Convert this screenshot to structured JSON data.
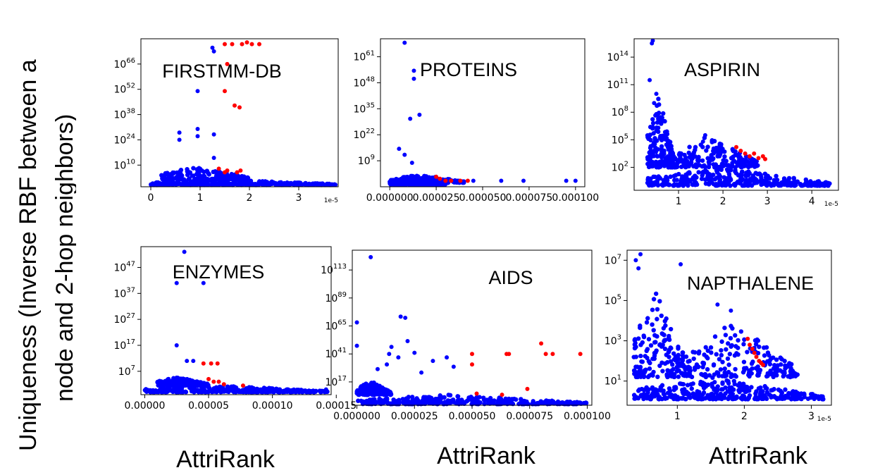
{
  "figure": {
    "ylabel_line1": "Uniqueness (Inverse RBF between a",
    "ylabel_line2": "node and 2-hop neighbors)",
    "xlabel": "AttriRank",
    "colors": {
      "normal": "#0000ff",
      "highlight": "#ff0000",
      "axis": "#000000"
    }
  },
  "chart_data": [
    {
      "type": "scatter",
      "title": "FIRSTMM-DB",
      "xlabel": "AttriRank",
      "ylabel": "Uniqueness",
      "yscale": "log",
      "xlim": [
        -0.2,
        3.8
      ],
      "ylim_log10": [
        -2,
        80
      ],
      "xticks": [
        0,
        1,
        2,
        3
      ],
      "xtick_labels": [
        "0",
        "1",
        "2",
        "3"
      ],
      "x_multiplier": "1e-5",
      "yticks_exp": [
        10,
        24,
        38,
        52,
        66
      ],
      "ytick_labels": [
        "10",
        "24",
        "38",
        "52",
        "66"
      ],
      "band": {
        "x0": 0.0,
        "x1": 3.75,
        "y0": -1,
        "y1": 2
      },
      "hump": {
        "x0": 0.2,
        "x1": 2.0,
        "y0": 2,
        "y1": 9
      },
      "blue_points": [
        [
          1.25,
          75
        ],
        [
          1.28,
          73
        ],
        [
          0.95,
          51
        ],
        [
          0.58,
          28
        ],
        [
          0.58,
          24
        ],
        [
          0.95,
          30
        ],
        [
          0.95,
          26
        ],
        [
          1.28,
          27
        ],
        [
          1.28,
          14
        ],
        [
          0.4,
          5
        ],
        [
          1.0,
          8
        ]
      ],
      "red_points": [
        [
          1.5,
          77
        ],
        [
          1.65,
          77
        ],
        [
          1.85,
          77
        ],
        [
          1.95,
          78
        ],
        [
          2.05,
          77
        ],
        [
          2.2,
          77
        ],
        [
          1.55,
          66
        ],
        [
          1.5,
          51
        ],
        [
          1.7,
          43
        ],
        [
          1.8,
          42
        ],
        [
          1.38,
          8
        ],
        [
          1.5,
          6
        ],
        [
          1.55,
          7
        ],
        [
          1.75,
          6
        ],
        [
          1.82,
          7
        ]
      ]
    },
    {
      "type": "scatter",
      "title": "PROTEINS",
      "xlabel": "AttriRank",
      "ylabel": "Uniqueness",
      "yscale": "log",
      "xlim": [
        -5e-06,
        0.000105
      ],
      "ylim_log10": [
        -4,
        70
      ],
      "xticks": [
        0,
        2.5e-05,
        5e-05,
        7.5e-05,
        0.0001
      ],
      "xtick_labels": [
        "0.000000",
        "0.000025",
        "0.000050",
        "0.000075",
        "0.000100"
      ],
      "x_multiplier": "",
      "yticks_exp": [
        9,
        22,
        35,
        48,
        61
      ],
      "ytick_labels": [
        "9",
        "22",
        "35",
        "48",
        "61"
      ],
      "band": {
        "x0": 0.0,
        "x1": 3e-05,
        "y0": -3,
        "y1": 1
      },
      "hump": {
        "x0": 0.0,
        "x1": 4e-05,
        "y0": -2,
        "y1": 2
      },
      "blue_points": [
        [
          8e-06,
          68
        ],
        [
          1.3e-05,
          54
        ],
        [
          1.3e-05,
          50
        ],
        [
          1.1e-05,
          30
        ],
        [
          1.6e-05,
          32
        ],
        [
          5e-06,
          15
        ],
        [
          8e-06,
          12
        ],
        [
          1.2e-05,
          8
        ],
        [
          4.5e-05,
          -1
        ],
        [
          6e-05,
          -1
        ],
        [
          7.2e-05,
          -1
        ],
        [
          9.5e-05,
          -1
        ],
        [
          0.0001,
          -1
        ]
      ],
      "red_points": [
        [
          2.5e-05,
          1
        ],
        [
          2.7e-05,
          0
        ],
        [
          3e-05,
          -1
        ],
        [
          3.3e-05,
          -1
        ],
        [
          3.8e-05,
          -1
        ],
        [
          4.2e-05,
          -1
        ]
      ]
    },
    {
      "type": "scatter",
      "title": "ASPIRIN",
      "xlabel": "AttriRank",
      "ylabel": "Uniqueness",
      "yscale": "log",
      "xlim": [
        0.0,
        4.6
      ],
      "ylim_log10": [
        -0.5,
        16
      ],
      "xticks": [
        1,
        2,
        3,
        4
      ],
      "xtick_labels": [
        "1",
        "2",
        "3",
        "4"
      ],
      "x_multiplier": "1e-5",
      "yticks_exp": [
        2,
        5,
        8,
        11,
        14
      ],
      "ytick_labels": [
        "2",
        "5",
        "8",
        "11",
        "14"
      ],
      "band": {
        "x0": 0.3,
        "x1": 4.4,
        "y0": 0,
        "y1": 2
      },
      "hump": {
        "x0": 0.3,
        "x1": 0.9,
        "y0": 2,
        "y1": 10
      },
      "hump2": {
        "x0": 0.9,
        "x1": 2.8,
        "y0": 2,
        "y1": 5.5
      },
      "blue_points": [
        [
          0.42,
          15.8
        ],
        [
          0.4,
          15.5
        ],
        [
          0.35,
          11.5
        ],
        [
          0.5,
          10
        ],
        [
          0.45,
          9
        ],
        [
          1.6,
          5.5
        ],
        [
          1.55,
          4.8
        ]
      ],
      "red_points": [
        [
          2.3,
          4.2
        ],
        [
          2.4,
          3.8
        ],
        [
          2.5,
          3.5
        ],
        [
          2.6,
          3.2
        ],
        [
          2.7,
          3.5
        ],
        [
          2.8,
          3.0
        ],
        [
          2.9,
          3.2
        ],
        [
          2.95,
          2.9
        ]
      ]
    },
    {
      "type": "scatter",
      "title": "ENZYMES",
      "xlabel": "AttriRank",
      "ylabel": "Uniqueness",
      "yscale": "log",
      "xlim": [
        -3e-06,
        0.000146
      ],
      "ylim_log10": [
        -2,
        55
      ],
      "xticks": [
        0,
        5e-05,
        0.0001,
        0.00015
      ],
      "xtick_labels": [
        "0.00000",
        "0.00005",
        "0.00010",
        "0.00015"
      ],
      "x_multiplier": "",
      "yticks_exp": [
        7,
        17,
        27,
        37,
        47
      ],
      "ytick_labels": [
        "7",
        "17",
        "27",
        "37",
        "47"
      ],
      "band": {
        "x0": 0.0,
        "x1": 0.000143,
        "y0": -1,
        "y1": 1.5
      },
      "hump": {
        "x0": 1e-05,
        "x1": 5e-05,
        "y0": 1.5,
        "y1": 5
      },
      "blue_points": [
        [
          3.1e-05,
          53
        ],
        [
          2.5e-05,
          41
        ],
        [
          4.6e-05,
          41
        ],
        [
          2.5e-05,
          17
        ],
        [
          3.3e-05,
          11
        ],
        [
          3.8e-05,
          11
        ],
        [
          0.000142,
          0
        ]
      ],
      "red_points": [
        [
          4.6e-05,
          10
        ],
        [
          5.2e-05,
          10
        ],
        [
          5.7e-05,
          10
        ],
        [
          5e-05,
          4
        ],
        [
          5.4e-05,
          3
        ],
        [
          5.8e-05,
          3
        ],
        [
          6.2e-05,
          2
        ],
        [
          7.7e-05,
          1.5
        ]
      ]
    },
    {
      "type": "scatter",
      "title": "AIDS",
      "xlabel": "AttriRank",
      "ylabel": "Uniqueness",
      "yscale": "log",
      "xlim": [
        -2e-06,
        0.000102
      ],
      "ylim_log10": [
        -3,
        130
      ],
      "xticks": [
        0,
        2.5e-05,
        5e-05,
        7.5e-05,
        0.0001
      ],
      "xtick_labels": [
        "0.000000",
        "0.000025",
        "0.000050",
        "0.000075",
        "0.000100"
      ],
      "x_multiplier": "",
      "yticks_exp": [
        17,
        41,
        65,
        89,
        113
      ],
      "ytick_labels": [
        "17",
        "41",
        "65",
        "89",
        "113"
      ],
      "band": {
        "x0": 0.0,
        "x1": 0.0001,
        "y0": -2,
        "y1": 6
      },
      "hump": {
        "x0": 0.0,
        "x1": 1.5e-05,
        "y0": 6,
        "y1": 18
      },
      "blue_points": [
        [
          6e-06,
          124
        ],
        [
          0.0,
          68
        ],
        [
          1.9e-05,
          73
        ],
        [
          2.1e-05,
          72
        ],
        [
          0.0,
          48
        ],
        [
          1.5e-05,
          47
        ],
        [
          2.2e-05,
          52
        ],
        [
          1.4e-05,
          41
        ],
        [
          1.3e-05,
          32
        ],
        [
          1.8e-05,
          38
        ],
        [
          2.5e-05,
          42
        ],
        [
          3.3e-05,
          35
        ],
        [
          3.9e-05,
          38
        ],
        [
          4.2e-05,
          30
        ],
        [
          9e-06,
          28
        ],
        [
          2.8e-05,
          25
        ]
      ],
      "red_points": [
        [
          5e-05,
          41
        ],
        [
          5e-05,
          32
        ],
        [
          6.5e-05,
          41
        ],
        [
          6.6e-05,
          41
        ],
        [
          8e-05,
          50
        ],
        [
          8.2e-05,
          41
        ],
        [
          8.5e-05,
          41
        ],
        [
          9.7e-05,
          41
        ],
        [
          5.2e-05,
          7
        ],
        [
          6.3e-05,
          6
        ],
        [
          7.4e-05,
          11
        ]
      ]
    },
    {
      "type": "scatter",
      "title": "NAPTHALENE",
      "xlabel": "AttriRank",
      "ylabel": "Uniqueness",
      "yscale": "log",
      "xlim": [
        0.25,
        3.3
      ],
      "ylim_log10": [
        -0.2,
        7.5
      ],
      "xticks": [
        1,
        2,
        3
      ],
      "xtick_labels": [
        "1",
        "2",
        "3"
      ],
      "x_multiplier": "1e-5",
      "yticks_exp": [
        1,
        3,
        5,
        7
      ],
      "ytick_labels": [
        "1",
        "3",
        "5",
        "7"
      ],
      "band": {
        "x0": 0.35,
        "x1": 3.2,
        "y0": 0.1,
        "y1": 1.2
      },
      "hump": {
        "x0": 0.35,
        "x1": 1.2,
        "y0": 1.2,
        "y1": 5.5
      },
      "hump2": {
        "x0": 1.2,
        "x1": 2.8,
        "y0": 1.2,
        "y1": 4
      },
      "blue_points": [
        [
          0.45,
          7.3
        ],
        [
          0.38,
          7.0
        ],
        [
          0.42,
          6.6
        ],
        [
          1.05,
          6.8
        ],
        [
          1.6,
          4.8
        ],
        [
          1.8,
          4.5
        ]
      ],
      "red_points": [
        [
          2.05,
          3.1
        ],
        [
          2.08,
          2.8
        ],
        [
          2.12,
          2.6
        ],
        [
          2.15,
          2.4
        ],
        [
          2.18,
          2.2
        ],
        [
          2.22,
          2.0
        ],
        [
          2.25,
          1.9
        ],
        [
          2.28,
          1.8
        ]
      ]
    }
  ]
}
